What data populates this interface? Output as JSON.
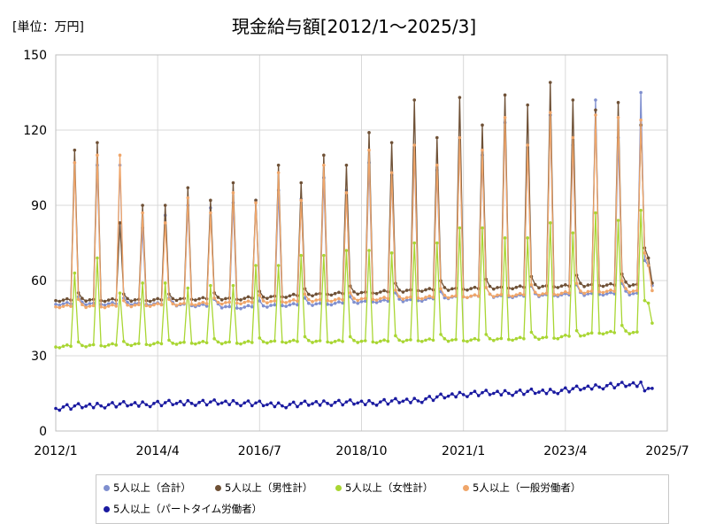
{
  "unit_label": "[単位：万円]",
  "title": "現金給与額[2012/1～2025/3]",
  "chart_data": {
    "type": "line",
    "title": "現金給与額[2012/1～2025/3]",
    "unit": "万円",
    "xlabel": "",
    "ylabel": "",
    "ylim": [
      0,
      150
    ],
    "yticks": [
      0,
      30,
      60,
      90,
      120,
      150
    ],
    "x_start": "2012/1",
    "x_end": "2025/3",
    "xlim_labels": [
      "2012/1",
      "2025/7"
    ],
    "xtick_labels": [
      "2012/1",
      "2014/4",
      "2016/7",
      "2018/10",
      "2021/1",
      "2023/4",
      "2025/7"
    ],
    "grid": true,
    "legend_position": "bottom",
    "series": [
      {
        "name": "5人以上（合計）",
        "color": "#7f8fcf",
        "base": [
          50.5,
          50.5,
          50.5,
          50,
          49,
          50,
          50.5,
          51.5,
          52,
          53.5,
          53.5,
          54,
          54.5
        ],
        "june": [
          107,
          106,
          86,
          89,
          92,
          92.5,
          96,
          102,
          104,
          110,
          113,
          114,
          117,
          125,
          125,
          125,
          123,
          126,
          134,
          134,
          122,
          118,
          114,
          111,
          110,
          121,
          126
        ],
        "dec": [
          106,
          81,
          90,
          91,
          96,
          101,
          107,
          112,
          117,
          123,
          126,
          132,
          135,
          120,
          116,
          116,
          126
        ],
        "summer_frac": [
          0.06,
          0.05,
          0.05,
          0.05,
          0.06,
          0.06,
          0.06,
          0.07,
          0.07,
          0.07,
          0.08,
          0.08,
          0.08,
          0.08
        ],
        "end": [
          68,
          66,
          58
        ]
      },
      {
        "name": "5人以上（男性計）",
        "color": "#6f5136",
        "base": [
          52,
          52,
          52,
          52.5,
          52.5,
          53.5,
          54.5,
          55,
          56,
          56.5,
          57,
          57.5,
          58
        ],
        "june": [
          112,
          83,
          90,
          92,
          92,
          99,
          106,
          115,
          117,
          122,
          130,
          132,
          131,
          138,
          139,
          122,
          117,
          118,
          120,
          128,
          132
        ],
        "dec": [
          115,
          90,
          97,
          99,
          106,
          110,
          119,
          132,
          133,
          134,
          139,
          128,
          122,
          117,
          117,
          132
        ],
        "summer_frac": [
          0.06,
          0.05,
          0.05,
          0.05,
          0.06,
          0.06,
          0.06,
          0.07,
          0.07,
          0.07,
          0.08,
          0.08,
          0.08,
          0.08
        ],
        "end": [
          73,
          69,
          59
        ]
      },
      {
        "name": "5人以上（女性計）",
        "color": "#a9d633",
        "base": [
          33.5,
          34,
          34.5,
          35,
          35,
          35.5,
          35.5,
          35.5,
          36,
          36,
          36.5,
          37,
          39
        ],
        "june": [
          63,
          55,
          59,
          58,
          66,
          70,
          72,
          71,
          75,
          81,
          77,
          79,
          84,
          87,
          88,
          84,
          77,
          76,
          75,
          72,
          84
        ],
        "dec": [
          69,
          59,
          57,
          58,
          66,
          70,
          72,
          75,
          81,
          77,
          83,
          87,
          88,
          84,
          77,
          76,
          75,
          84
        ],
        "summer_frac": [
          0.06,
          0.05,
          0.05,
          0.05,
          0.06,
          0.06,
          0.06,
          0.07,
          0.07,
          0.07,
          0.08,
          0.08,
          0.08,
          0.08
        ],
        "end": [
          52,
          51,
          43
        ]
      },
      {
        "name": "5人以上（一般労働者）",
        "color": "#f0a66a",
        "base": [
          49.5,
          49.5,
          50,
          50.5,
          51,
          51.5,
          52,
          52.5,
          53,
          53.5,
          54,
          54.5,
          55.5
        ],
        "june": [
          107,
          110,
          83,
          87,
          91,
          92,
          95,
          103,
          106,
          112,
          114,
          117,
          125,
          127,
          126,
          124,
          135,
          134,
          123,
          121,
          116,
          113,
          111,
          121,
          126
        ],
        "dec": [
          110,
          87,
          93,
          95,
          103,
          106,
          112,
          114,
          117,
          125,
          127,
          126,
          124,
          135,
          134,
          123,
          121,
          116,
          113,
          111,
          121,
          126
        ],
        "summer_frac": [
          0.06,
          0.05,
          0.05,
          0.05,
          0.06,
          0.06,
          0.06,
          0.07,
          0.07,
          0.07,
          0.08,
          0.08,
          0.08,
          0.08
        ],
        "end": [
          71,
          66,
          56
        ]
      },
      {
        "name": "5人以上（パートタイム労働者）",
        "color": "#1a1aa0",
        "base": [
          9,
          10,
          10.5,
          11,
          11,
          10,
          11,
          11,
          12,
          14.5,
          15,
          15.5,
          17.5,
          18.5
        ],
        "june": [],
        "dec": [],
        "summer_frac": [],
        "end": [
          16,
          17,
          17
        ]
      }
    ]
  }
}
